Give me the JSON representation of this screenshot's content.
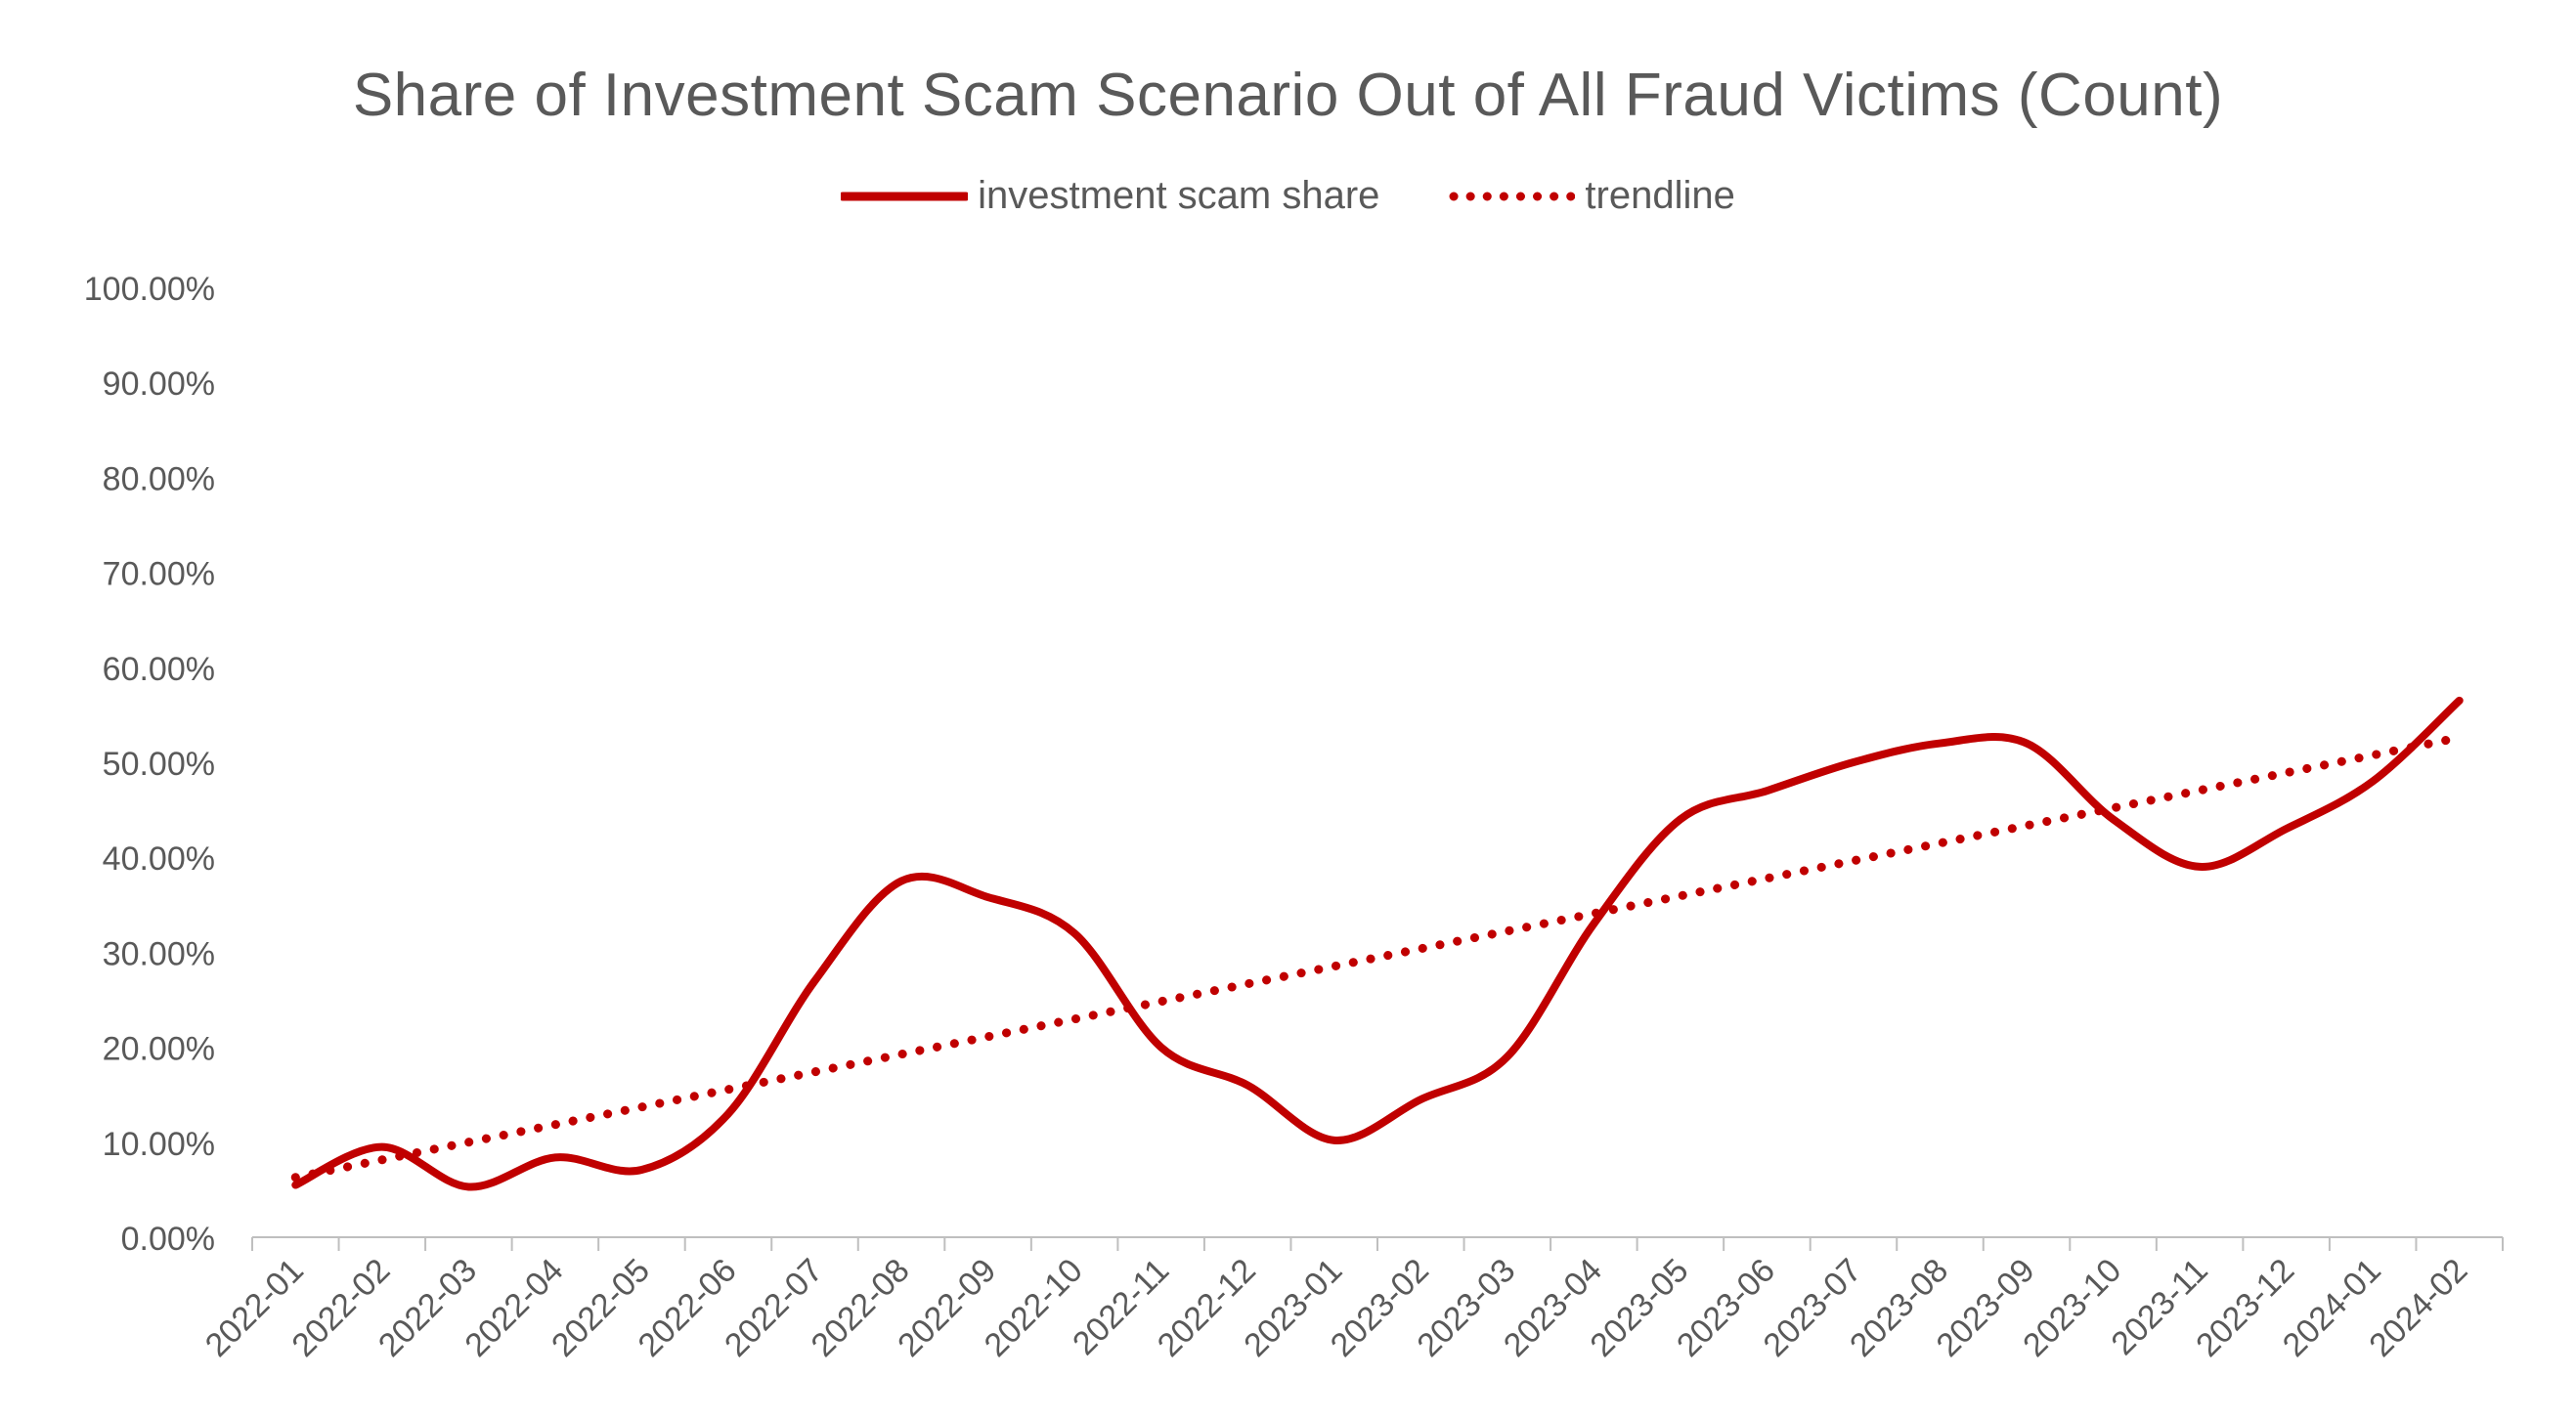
{
  "chart_data": {
    "type": "line",
    "title": "Share of Investment Scam Scenario Out of All Fraud Victims (Count)",
    "xlabel": "",
    "ylabel": "",
    "categories": [
      "2022-01",
      "2022-02",
      "2022-03",
      "2022-04",
      "2022-05",
      "2022-06",
      "2022-07",
      "2022-08",
      "2022-09",
      "2022-10",
      "2022-11",
      "2022-12",
      "2023-01",
      "2023-02",
      "2023-03",
      "2023-04",
      "2023-05",
      "2023-06",
      "2023-07",
      "2023-08",
      "2023-09",
      "2023-10",
      "2023-11",
      "2023-12",
      "2024-01",
      "2024-02"
    ],
    "series": [
      {
        "name": "investment scam share",
        "style": "solid",
        "color": "#C00000",
        "values": [
          5.5,
          9.5,
          5.3,
          8.4,
          7.1,
          13.0,
          27.0,
          37.5,
          35.8,
          32.0,
          20.0,
          16.0,
          10.2,
          14.5,
          19.0,
          33.0,
          44.0,
          47.0,
          50.0,
          52.0,
          52.0,
          44.0,
          39.0,
          43.0,
          48.0,
          56.5
        ]
      },
      {
        "name": "trendline",
        "style": "dotted",
        "color": "#C00000",
        "values": [
          6.3,
          8.2,
          10.0,
          11.8,
          13.7,
          15.5,
          17.4,
          19.2,
          21.1,
          23.0,
          24.8,
          26.7,
          28.5,
          30.4,
          32.2,
          34.1,
          35.9,
          37.8,
          39.6,
          41.5,
          43.3,
          45.2,
          47.0,
          48.9,
          50.8,
          52.6
        ]
      }
    ],
    "ylim": [
      0,
      100
    ],
    "yticks": [
      "0.00%",
      "10.00%",
      "20.00%",
      "30.00%",
      "40.00%",
      "50.00%",
      "60.00%",
      "70.00%",
      "80.00%",
      "90.00%",
      "100.00%"
    ],
    "grid": false,
    "legend_position": "top-center"
  }
}
